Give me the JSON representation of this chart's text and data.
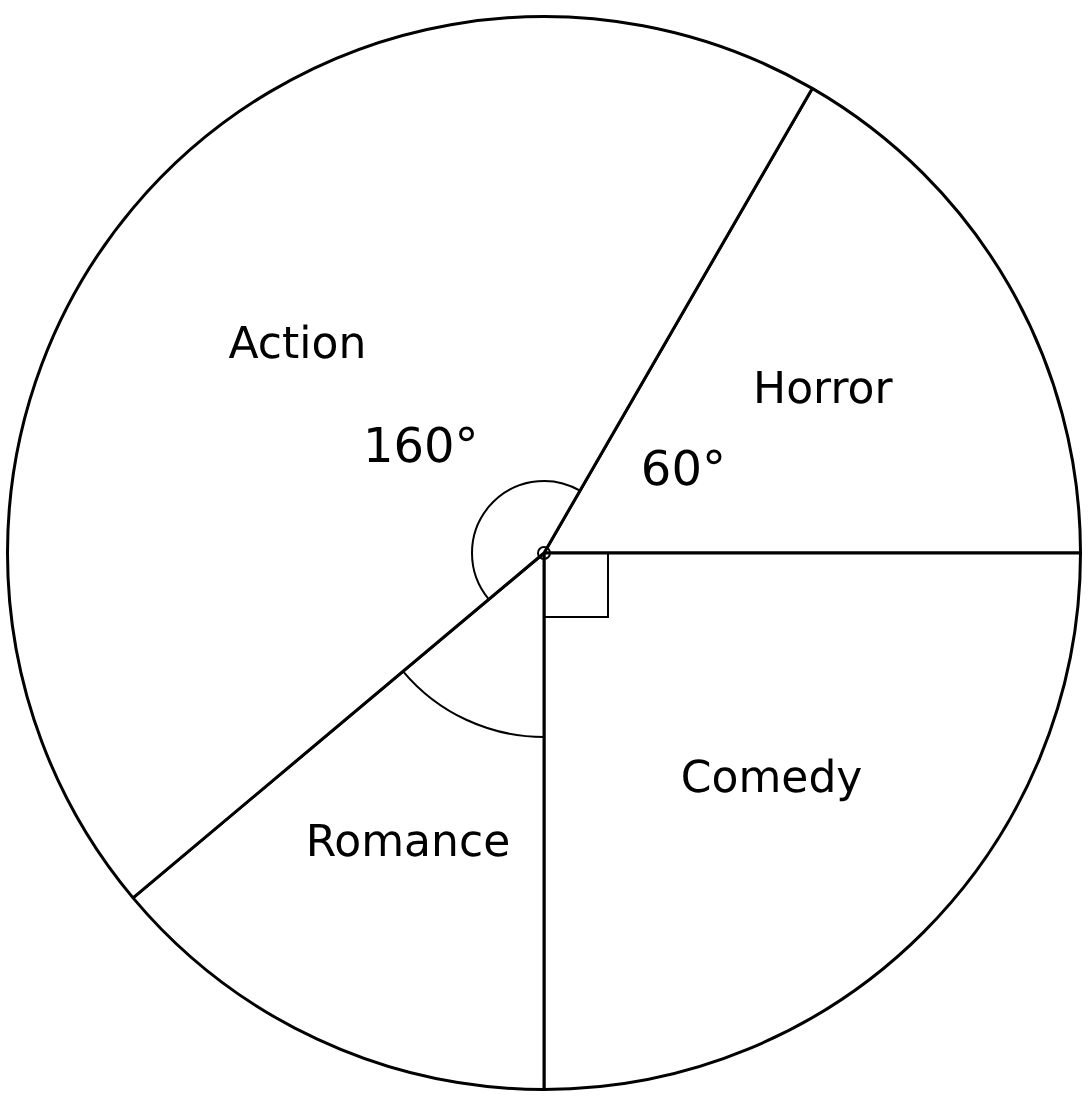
{
  "chart_data": {
    "type": "pie",
    "categories": [
      "Horror",
      "Comedy",
      "Romance",
      "Action"
    ],
    "values": [
      60,
      90,
      50,
      160
    ],
    "colors": [
      "#ffffff",
      "#ffffff",
      "#ffffff",
      "#ffffff"
    ],
    "value_labels": [
      "60°",
      null,
      null,
      "160°"
    ],
    "legend": false
  }
}
